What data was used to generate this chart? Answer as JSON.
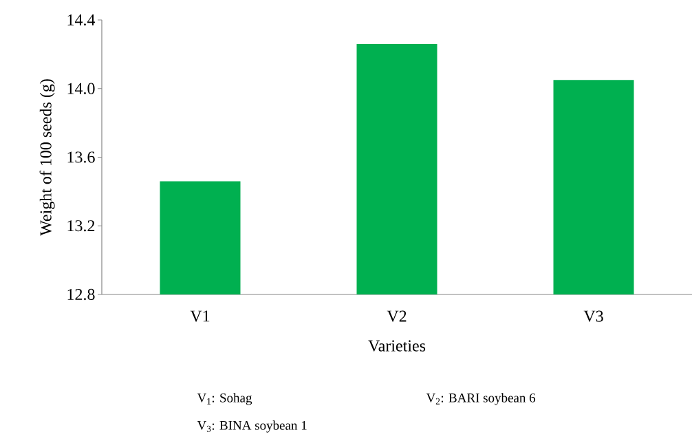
{
  "chart_data": {
    "type": "bar",
    "xlabel": "Varieties",
    "ylabel": "Weight of 100 seeds (g)",
    "categories": [
      "V1",
      "V2",
      "V3"
    ],
    "values": [
      13.46,
      14.26,
      14.05
    ],
    "color": "#00b050",
    "ylim": [
      12.8,
      14.4
    ],
    "yticks": [
      12.8,
      13.2,
      13.6,
      {
        "value": 14.0,
        "label": "14.0"
      },
      14.4
    ],
    "annotations": [
      "V$_{1}$: Sohag",
      "V$_{2}$: BARI soybean 6",
      "V$_{3}$: BINA soybean 1"
    ]
  }
}
